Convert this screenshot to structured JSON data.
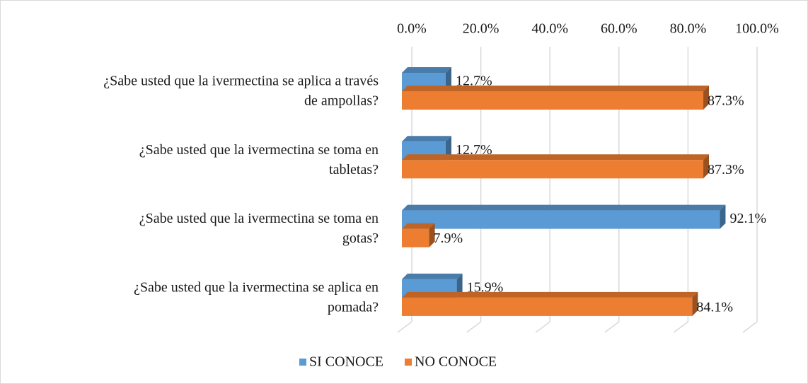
{
  "chart_data": {
    "type": "bar",
    "orientation": "horizontal",
    "three_d": true,
    "categories": [
      [
        "¿Sabe usted que la ivermectina se aplica a través",
        "de ampollas?"
      ],
      [
        "¿Sabe usted que la ivermectina se toma en",
        "tabletas?"
      ],
      [
        "¿Sabe usted que la ivermectina se toma en",
        "gotas?"
      ],
      [
        "¿Sabe usted que la ivermectina se aplica en",
        "pomada?"
      ]
    ],
    "series": [
      {
        "name": "SI CONOCE",
        "color": "#5b9bd5",
        "values": [
          12.7,
          12.7,
          92.1,
          15.9
        ],
        "value_labels": [
          "12.7%",
          "12.7%",
          "92.1%",
          "15.9%"
        ]
      },
      {
        "name": "NO CONOCE",
        "color": "#ed7d31",
        "values": [
          87.3,
          87.3,
          7.9,
          84.1
        ],
        "value_labels": [
          "87.3%",
          "87.3%",
          "7.9%",
          "84.1%"
        ]
      }
    ],
    "xlim": [
      0,
      100
    ],
    "xticks": [
      {
        "value": 0,
        "label": "0.0%"
      },
      {
        "value": 20,
        "label": "20.0%"
      },
      {
        "value": 40,
        "label": "40.0%"
      },
      {
        "value": 60,
        "label": "60.0%"
      },
      {
        "value": 80,
        "label": "80.0%"
      },
      {
        "value": 100,
        "label": "100.0%"
      }
    ],
    "grid": true,
    "legend": "bottom"
  }
}
